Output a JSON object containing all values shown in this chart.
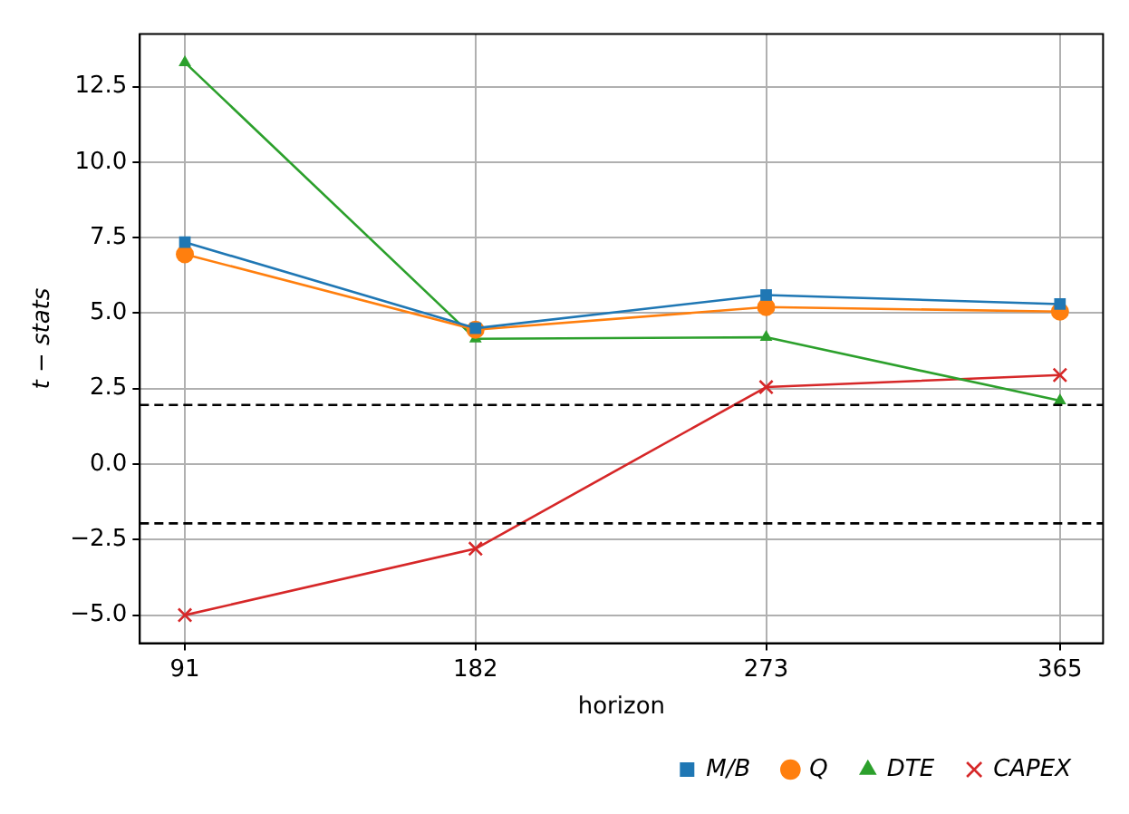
{
  "chart_data": {
    "type": "line",
    "xlabel": "horizon",
    "ylabel": "t − stats",
    "x": [
      91,
      182,
      273,
      365
    ],
    "xlim": [
      76.9,
      378.5
    ],
    "xticks": [
      91,
      182,
      273,
      365
    ],
    "ylim": [
      -5.93,
      14.24
    ],
    "yticks": [
      {
        "value": -5,
        "label": "−5.0"
      },
      {
        "value": -2.5,
        "label": "−2.5"
      },
      {
        "value": 0,
        "label": "0.0"
      },
      2.5,
      {
        "value": 5,
        "label": "5.0"
      },
      7.5,
      {
        "value": 10,
        "label": "10.0"
      },
      12.5
    ],
    "grid": true,
    "legend": "bottom",
    "series": [
      {
        "name": "M/B",
        "color": "#1f77b4",
        "marker": "square",
        "values": [
          7.35,
          4.5,
          5.6,
          5.3
        ]
      },
      {
        "name": "Q",
        "color": "#ff7f0e",
        "marker": "circle",
        "values": [
          6.95,
          4.45,
          5.2,
          5.05
        ]
      },
      {
        "name": "DTE",
        "color": "#2ca02c",
        "marker": "triangle",
        "values": [
          13.3,
          4.15,
          4.2,
          2.1
        ]
      },
      {
        "name": "CAPEX",
        "color": "#d62728",
        "marker": "cross",
        "values": [
          -5.0,
          -2.8,
          2.55,
          2.95
        ]
      }
    ],
    "ref_lines": [
      {
        "axis": "y",
        "value": 1.96,
        "color": "#000000",
        "line_style": "dashed"
      },
      {
        "axis": "y",
        "value": -1.96,
        "color": "#000000",
        "line_style": "dashed"
      }
    ]
  }
}
